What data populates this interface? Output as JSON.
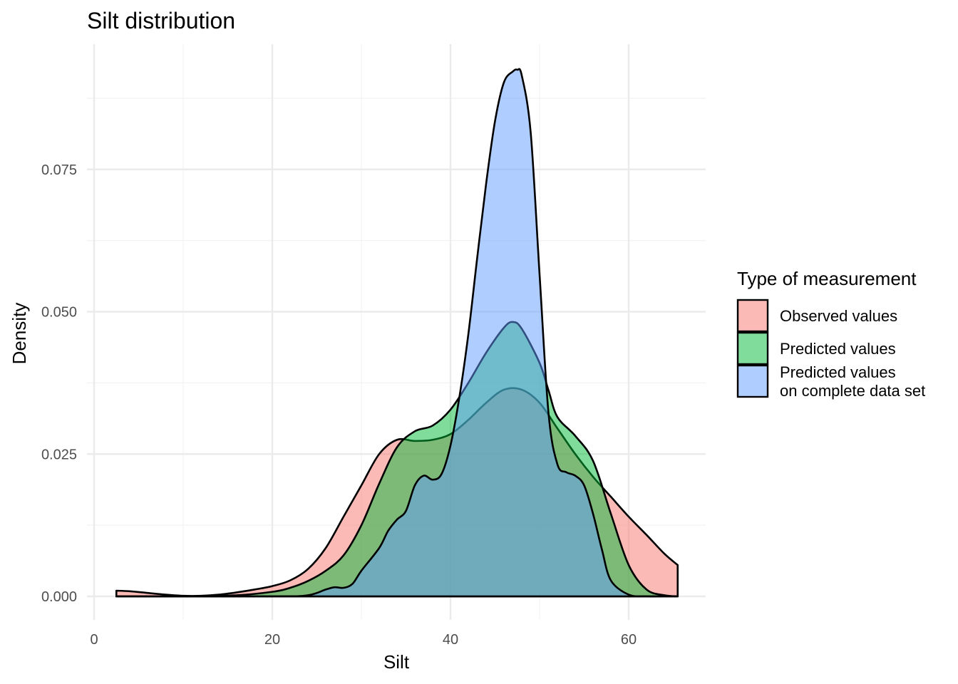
{
  "chart_data": {
    "type": "area",
    "title": "Silt distribution",
    "xlabel": "Silt",
    "ylabel": "Density",
    "xlim": [
      0,
      68
    ],
    "ylim": [
      -0.002,
      0.095
    ],
    "x_ticks": [
      0,
      20,
      40,
      60
    ],
    "x_tick_labels": [
      "0",
      "20",
      "40",
      "60"
    ],
    "y_ticks": [
      0,
      0.025,
      0.05,
      0.075
    ],
    "y_tick_labels": [
      "0.000",
      "0.025",
      "0.050",
      "0.075"
    ],
    "grid": true,
    "legend": {
      "title": "Type of measurement",
      "position": "right",
      "entries": [
        [
          "Observed values"
        ],
        [
          "Predicted values"
        ],
        [
          "Predicted values",
          "on complete data set"
        ]
      ]
    },
    "series": [
      {
        "name": "Observed values",
        "color": "#F8766D",
        "x": [
          2.5,
          4,
          6,
          8,
          10,
          12,
          14,
          16,
          18,
          20,
          22,
          24,
          26,
          28,
          30,
          32,
          34,
          36,
          38,
          40,
          42,
          44,
          46,
          48,
          50,
          52,
          54,
          56,
          58,
          60,
          62,
          64,
          65.5
        ],
        "y": [
          0.001,
          0.0009,
          0.0006,
          0.0003,
          0.0001,
          0.0001,
          0.0003,
          0.0007,
          0.0012,
          0.0018,
          0.0028,
          0.0048,
          0.0085,
          0.014,
          0.0195,
          0.025,
          0.0275,
          0.0273,
          0.0275,
          0.0285,
          0.031,
          0.034,
          0.0363,
          0.0363,
          0.034,
          0.0295,
          0.025,
          0.021,
          0.0175,
          0.014,
          0.0108,
          0.0075,
          0.0055
        ]
      },
      {
        "name": "Predicted values",
        "color": "#00BA38",
        "x": [
          2.5,
          10,
          16,
          20,
          22,
          24,
          26,
          28,
          30,
          32,
          34,
          36,
          38,
          40,
          42,
          44,
          46,
          47,
          48,
          50,
          51,
          52,
          54,
          56,
          58,
          60,
          62,
          64,
          65.5
        ],
        "y": [
          0,
          0,
          0.0002,
          0.0008,
          0.0015,
          0.0027,
          0.0045,
          0.0072,
          0.0125,
          0.0198,
          0.0262,
          0.029,
          0.03,
          0.0328,
          0.0375,
          0.0428,
          0.0472,
          0.0482,
          0.047,
          0.041,
          0.0362,
          0.0315,
          0.0282,
          0.0238,
          0.0145,
          0.0055,
          0.0012,
          0.0002,
          0
        ]
      },
      {
        "name": "Predicted values on complete data set",
        "color": "#619CFF",
        "x": [
          2.5,
          20,
          24,
          26,
          27,
          28,
          29,
          30,
          32,
          33,
          34,
          35,
          36,
          37,
          38,
          39,
          40,
          41,
          42,
          43,
          44,
          45,
          46,
          47,
          47.5,
          48,
          49,
          50,
          51,
          52,
          53,
          54,
          55,
          56,
          57,
          58,
          60,
          62,
          64,
          65.5
        ],
        "y": [
          0,
          0,
          0.0002,
          0.0012,
          0.0016,
          0.0015,
          0.0022,
          0.0045,
          0.0085,
          0.0115,
          0.0135,
          0.015,
          0.0195,
          0.0212,
          0.0205,
          0.0215,
          0.0265,
          0.035,
          0.046,
          0.0595,
          0.0725,
          0.0835,
          0.0903,
          0.0922,
          0.0925,
          0.0915,
          0.0815,
          0.0565,
          0.0322,
          0.0232,
          0.0218,
          0.0212,
          0.0195,
          0.0145,
          0.0082,
          0.0028,
          0.0003,
          0,
          0,
          0
        ]
      }
    ]
  }
}
